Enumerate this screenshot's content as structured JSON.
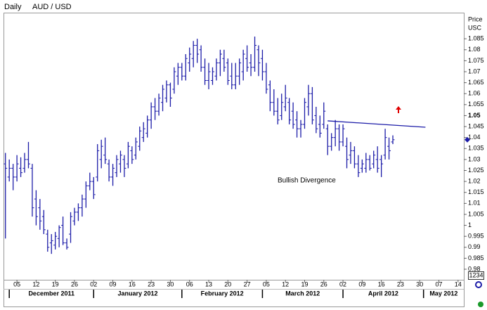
{
  "chart_data": {
    "type": "ohlc",
    "title": "Daily",
    "subtitle": "AUD / USD",
    "axis_labels": [
      "Price",
      "USC"
    ],
    "annotation": "Bullish Divergence",
    "corner_label": "1234",
    "color": "#1c1ca8",
    "trendline": {
      "x": [
        84,
        109.5
      ],
      "y": [
        1.0476,
        1.0447
      ],
      "color": "#1c1ca8"
    },
    "xlim": [
      -0.5,
      119.5
    ],
    "ylim": [
      0.9752,
      1.0969
    ],
    "yticks": [
      1.085,
      1.08,
      1.075,
      1.07,
      1.065,
      1.06,
      1.055,
      1.05,
      1.045,
      1.04,
      1.035,
      1.03,
      1.025,
      1.02,
      1.015,
      1.01,
      1.005,
      1,
      0.995,
      0.99,
      0.985,
      0.98
    ],
    "xticks": [
      {
        "value": 3,
        "label": "05"
      },
      {
        "value": 8,
        "label": "12"
      },
      {
        "value": 13,
        "label": "19"
      },
      {
        "value": 18,
        "label": "26"
      },
      {
        "value": 23,
        "label": "02"
      },
      {
        "value": 28,
        "label": "09"
      },
      {
        "value": 33,
        "label": "16"
      },
      {
        "value": 38,
        "label": "23"
      },
      {
        "value": 43,
        "label": "30"
      },
      {
        "value": 48,
        "label": "06"
      },
      {
        "value": 53,
        "label": "13"
      },
      {
        "value": 58,
        "label": "20"
      },
      {
        "value": 63,
        "label": "27"
      },
      {
        "value": 68,
        "label": "05"
      },
      {
        "value": 73,
        "label": "12"
      },
      {
        "value": 78,
        "label": "19"
      },
      {
        "value": 83,
        "label": "26"
      },
      {
        "value": 88,
        "label": "02"
      },
      {
        "value": 93,
        "label": "09"
      },
      {
        "value": 98,
        "label": "16"
      },
      {
        "value": 103,
        "label": "23"
      },
      {
        "value": 108,
        "label": "30"
      },
      {
        "value": 113,
        "label": "07"
      },
      {
        "value": 118,
        "label": "14"
      }
    ],
    "months": [
      {
        "value": 1,
        "label": "December 2011"
      },
      {
        "value": 23,
        "label": "January 2012"
      },
      {
        "value": 46,
        "label": "February 2012"
      },
      {
        "value": 67,
        "label": "March 2012"
      },
      {
        "value": 88,
        "label": "April 2012"
      },
      {
        "value": 109,
        "label": "May 2012"
      }
    ],
    "high": [
      1.033,
      1.03,
      1.028,
      1.032,
      1.031,
      1.033,
      1.038,
      1.028,
      1.016,
      1.012,
      1.007,
      0.998,
      0.996,
      0.997,
      1.0,
      1.004,
      0.994,
      1.006,
      1.008,
      1.01,
      1.014,
      1.02,
      1.024,
      1.022,
      1.037,
      1.039,
      1.04,
      1.03,
      1.028,
      1.032,
      1.034,
      1.032,
      1.038,
      1.036,
      1.04,
      1.045,
      1.047,
      1.05,
      1.056,
      1.058,
      1.06,
      1.064,
      1.066,
      1.065,
      1.072,
      1.074,
      1.074,
      1.078,
      1.081,
      1.084,
      1.085,
      1.082,
      1.076,
      1.074,
      1.072,
      1.076,
      1.08,
      1.08,
      1.076,
      1.074,
      1.074,
      1.076,
      1.08,
      1.082,
      1.078,
      1.086,
      1.082,
      1.08,
      1.074,
      1.066,
      1.062,
      1.058,
      1.06,
      1.064,
      1.058,
      1.056,
      1.052,
      1.048,
      1.058,
      1.064,
      1.063,
      1.054,
      1.05,
      1.056,
      1.046,
      1.042,
      1.048,
      1.046,
      1.046,
      1.04,
      1.038,
      1.036,
      1.032,
      1.03,
      1.033,
      1.032,
      1.034,
      1.036,
      1.032,
      1.044,
      1.04,
      1.041
    ],
    "low": [
      0.994,
      1.02,
      1.016,
      1.02,
      1.022,
      1.024,
      1.026,
      1.004,
      1.0,
      0.998,
      0.996,
      0.988,
      0.987,
      0.989,
      0.99,
      0.991,
      0.989,
      0.992,
      1.0,
      1.002,
      1.004,
      1.008,
      1.016,
      1.012,
      1.02,
      1.026,
      1.028,
      1.02,
      1.018,
      1.022,
      1.024,
      1.022,
      1.026,
      1.028,
      1.03,
      1.034,
      1.038,
      1.04,
      1.044,
      1.048,
      1.05,
      1.052,
      1.056,
      1.054,
      1.06,
      1.064,
      1.066,
      1.066,
      1.07,
      1.072,
      1.074,
      1.07,
      1.064,
      1.062,
      1.064,
      1.066,
      1.068,
      1.07,
      1.064,
      1.062,
      1.062,
      1.064,
      1.066,
      1.07,
      1.068,
      1.07,
      1.068,
      1.066,
      1.06,
      1.052,
      1.05,
      1.046,
      1.048,
      1.052,
      1.046,
      1.044,
      1.04,
      1.04,
      1.044,
      1.05,
      1.046,
      1.042,
      1.04,
      1.044,
      1.032,
      1.034,
      1.036,
      1.034,
      1.036,
      1.026,
      1.028,
      1.026,
      1.022,
      1.024,
      1.024,
      1.025,
      1.026,
      1.024,
      1.022,
      1.03,
      1.03,
      1.037
    ],
    "open": [
      1.028,
      1.022,
      1.026,
      1.022,
      1.026,
      1.026,
      1.03,
      1.026,
      1.012,
      1.008,
      1.004,
      0.996,
      0.992,
      0.991,
      0.994,
      1.0,
      0.992,
      0.996,
      1.002,
      1.006,
      1.008,
      1.012,
      1.018,
      1.02,
      1.022,
      1.03,
      1.032,
      1.028,
      1.022,
      1.024,
      1.028,
      1.03,
      1.028,
      1.034,
      1.032,
      1.036,
      1.04,
      1.042,
      1.048,
      1.054,
      1.052,
      1.056,
      1.058,
      1.064,
      1.062,
      1.068,
      1.072,
      1.068,
      1.074,
      1.076,
      1.082,
      1.08,
      1.072,
      1.066,
      1.066,
      1.068,
      1.074,
      1.076,
      1.074,
      1.068,
      1.064,
      1.068,
      1.07,
      1.076,
      1.074,
      1.072,
      1.08,
      1.076,
      1.07,
      1.064,
      1.056,
      1.052,
      1.05,
      1.054,
      1.056,
      1.052,
      1.048,
      1.044,
      1.046,
      1.054,
      1.06,
      1.05,
      1.046,
      1.046,
      1.044,
      1.036,
      1.04,
      1.044,
      1.038,
      1.036,
      1.032,
      1.034,
      1.028,
      1.026,
      1.026,
      1.03,
      1.028,
      1.03,
      1.03,
      1.032,
      1.036,
      1.038
    ],
    "close": [
      1.026,
      1.026,
      1.022,
      1.028,
      1.024,
      1.03,
      1.028,
      1.008,
      1.004,
      1.002,
      0.998,
      0.99,
      0.993,
      0.995,
      0.999,
      0.992,
      0.99,
      1.004,
      1.006,
      1.008,
      1.012,
      1.018,
      1.02,
      1.014,
      1.034,
      1.036,
      1.03,
      1.022,
      1.026,
      1.03,
      1.032,
      1.026,
      1.036,
      1.03,
      1.038,
      1.043,
      1.044,
      1.048,
      1.054,
      1.052,
      1.058,
      1.062,
      1.064,
      1.058,
      1.07,
      1.072,
      1.068,
      1.076,
      1.078,
      1.082,
      1.078,
      1.072,
      1.066,
      1.07,
      1.07,
      1.074,
      1.078,
      1.072,
      1.066,
      1.064,
      1.068,
      1.074,
      1.078,
      1.072,
      1.072,
      1.082,
      1.074,
      1.07,
      1.062,
      1.056,
      1.052,
      1.048,
      1.056,
      1.058,
      1.048,
      1.046,
      1.044,
      1.046,
      1.056,
      1.06,
      1.048,
      1.044,
      1.042,
      1.052,
      1.036,
      1.04,
      1.044,
      1.038,
      1.044,
      1.03,
      1.034,
      1.028,
      1.024,
      1.028,
      1.03,
      1.026,
      1.032,
      1.026,
      1.028,
      1.04,
      1.034,
      1.039
    ]
  }
}
